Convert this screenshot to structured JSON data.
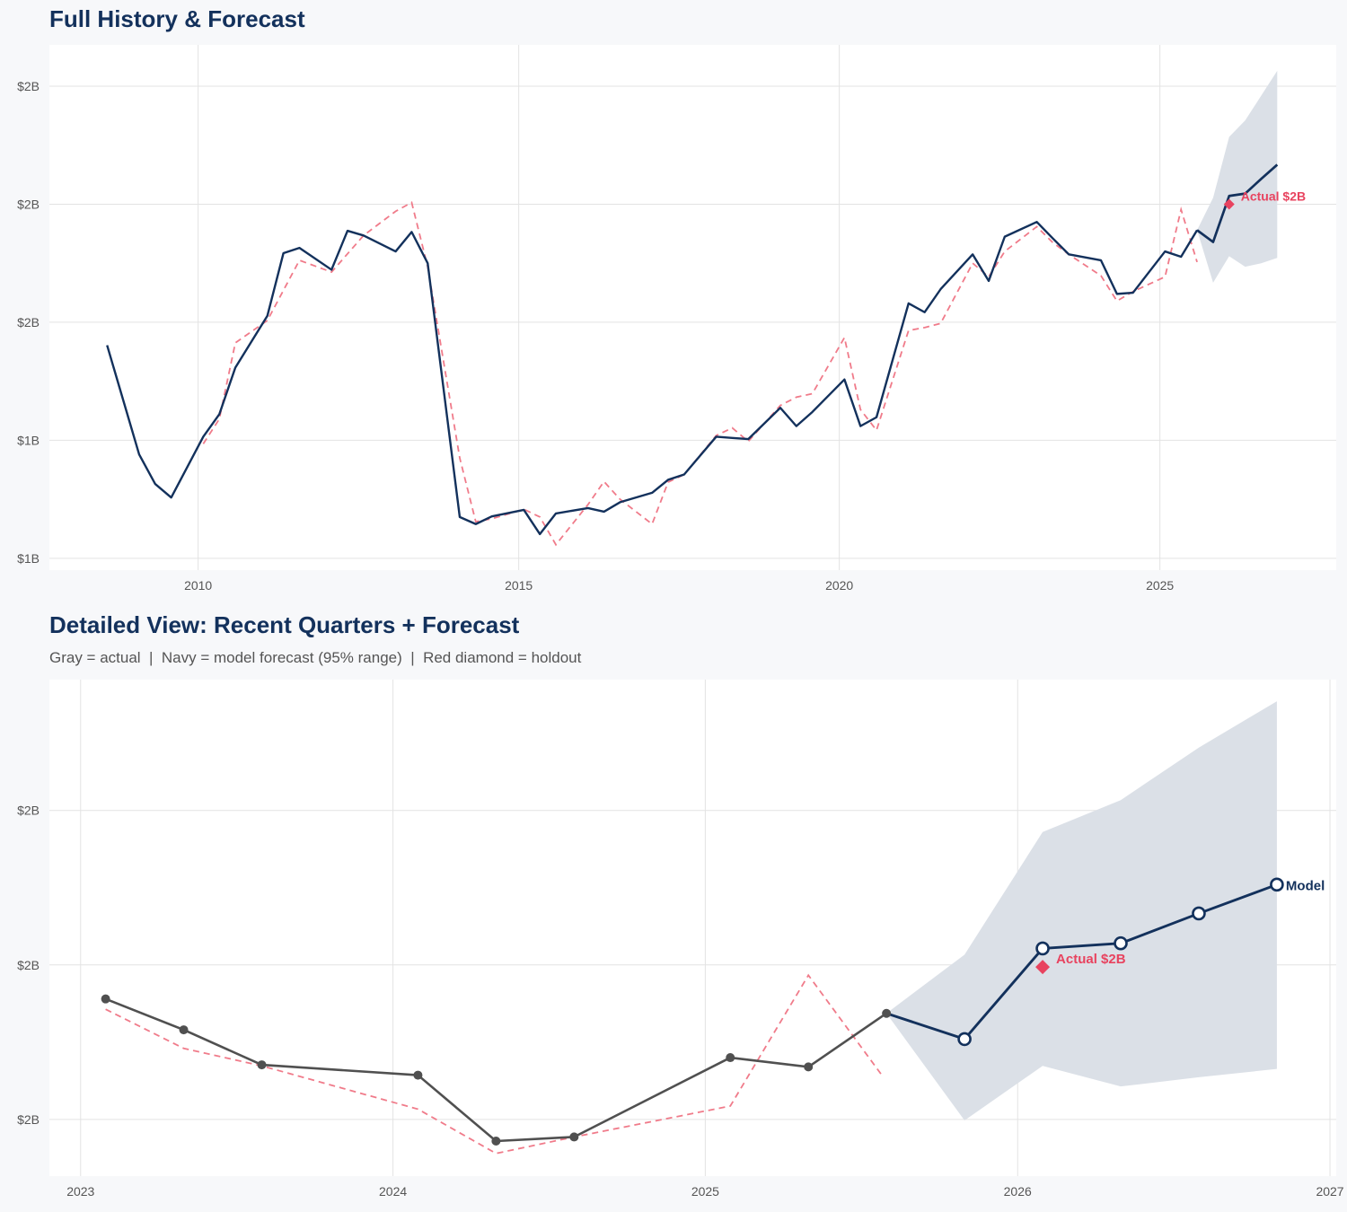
{
  "top": {
    "title": "Full History & Forecast"
  },
  "bottom": {
    "title": "Detailed View: Recent Quarters + Forecast",
    "subtitle": "Gray = actual  |  Navy = model forecast (95% range)  |  Red diamond = holdout"
  },
  "colors": {
    "navy": "#13315c",
    "gray_actual": "#505050",
    "fitted_dashed": "#f07b8a",
    "holdout": "#e8435f",
    "band": "#dbe0e7",
    "grid": "#e3e3e3",
    "panel": "#ffffff",
    "background": "#f7f8fa"
  },
  "chart_data": [
    {
      "type": "line",
      "title": "Full History & Forecast",
      "xlim": [
        2007.68,
        2027.75
      ],
      "ylim": [
        1.18,
        2.07
      ],
      "grid": true,
      "x_ticks": [
        2010,
        2015,
        2020,
        2025
      ],
      "x_tick_labels": [
        "2010",
        "2015",
        "2020",
        "2025"
      ],
      "y_ticks": [
        1.2,
        1.4,
        1.6,
        1.8,
        2.0
      ],
      "y_tick_labels": [
        "$1B",
        "$1B",
        "$2B",
        "$2B",
        "$2B"
      ],
      "history": {
        "x": [
          2008.58,
          2009.08,
          2009.33,
          2009.58,
          2010.08,
          2010.33,
          2010.58,
          2011.08,
          2011.33,
          2011.58,
          2012.08,
          2012.33,
          2012.58,
          2013.08,
          2013.33,
          2013.58,
          2014.08,
          2014.33,
          2014.58,
          2015.08,
          2015.33,
          2015.58,
          2016.08,
          2016.33,
          2016.58,
          2017.08,
          2017.33,
          2017.58,
          2018.08,
          2018.33,
          2018.58,
          2019.08,
          2019.33,
          2019.58,
          2020.08,
          2020.33,
          2020.58,
          2021.08,
          2021.33,
          2021.58,
          2022.08,
          2022.33,
          2022.58,
          2023.08,
          2023.33,
          2023.58,
          2024.08,
          2024.33,
          2024.58,
          2025.08,
          2025.33,
          2025.58
        ],
        "y": [
          1.561,
          1.376,
          1.326,
          1.303,
          1.406,
          1.444,
          1.523,
          1.611,
          1.717,
          1.726,
          1.689,
          1.755,
          1.747,
          1.72,
          1.753,
          1.7,
          1.27,
          1.258,
          1.271,
          1.282,
          1.241,
          1.276,
          1.285,
          1.279,
          1.295,
          1.311,
          1.333,
          1.342,
          1.406,
          1.404,
          1.402,
          1.455,
          1.424,
          1.448,
          1.503,
          1.424,
          1.439,
          1.632,
          1.617,
          1.656,
          1.715,
          1.67,
          1.745,
          1.77,
          1.742,
          1.715,
          1.705,
          1.648,
          1.65,
          1.72,
          1.711,
          1.756
        ]
      },
      "fitted": {
        "x": [
          2010.08,
          2010.33,
          2010.58,
          2011.08,
          2011.58,
          2012.08,
          2012.58,
          2013.08,
          2013.33,
          2013.58,
          2014.08,
          2014.33,
          2014.58,
          2015.08,
          2015.33,
          2015.58,
          2016.08,
          2016.33,
          2016.58,
          2017.08,
          2017.33,
          2017.58,
          2018.08,
          2018.33,
          2018.58,
          2019.08,
          2019.33,
          2019.58,
          2020.08,
          2020.33,
          2020.58,
          2021.08,
          2021.33,
          2021.58,
          2022.08,
          2022.33,
          2022.58,
          2023.08,
          2023.33,
          2023.58,
          2024.08,
          2024.33,
          2024.58,
          2025.08,
          2025.33,
          2025.58
        ],
        "y": [
          1.394,
          1.436,
          1.565,
          1.603,
          1.705,
          1.685,
          1.747,
          1.788,
          1.803,
          1.694,
          1.37,
          1.262,
          1.267,
          1.283,
          1.27,
          1.223,
          1.291,
          1.33,
          1.3,
          1.258,
          1.329,
          1.342,
          1.408,
          1.421,
          1.398,
          1.459,
          1.473,
          1.479,
          1.574,
          1.452,
          1.417,
          1.586,
          1.591,
          1.598,
          1.7,
          1.677,
          1.72,
          1.762,
          1.735,
          1.715,
          1.679,
          1.636,
          1.652,
          1.677,
          1.791,
          1.702
        ]
      },
      "forecast": {
        "x": [
          2025.58,
          2025.83,
          2026.08,
          2026.33,
          2026.58,
          2026.83
        ],
        "y": [
          1.756,
          1.736,
          1.814,
          1.818,
          1.843,
          1.867
        ],
        "upper": [
          1.756,
          1.811,
          1.914,
          1.942,
          1.984,
          2.026
        ],
        "lower": [
          1.756,
          1.667,
          1.712,
          1.694,
          1.7,
          1.709
        ]
      },
      "holdout": {
        "x": 2026.08,
        "y": 1.8,
        "label": "Actual $2B"
      }
    },
    {
      "type": "line",
      "title": "Detailed View: Recent Quarters + Forecast",
      "subtitle": "Gray = actual  |  Navy = model forecast (95% range)  |  Red diamond = holdout",
      "xlim": [
        2022.9,
        2027.02
      ],
      "ylim": [
        1.595,
        2.077
      ],
      "grid": true,
      "x_ticks": [
        2023,
        2024,
        2025,
        2026,
        2027
      ],
      "x_tick_labels": [
        "2023",
        "2024",
        "2025",
        "2026",
        "2027"
      ],
      "y_ticks": [
        1.65,
        1.8,
        1.95
      ],
      "y_tick_labels": [
        "$2B",
        "$2B",
        "$2B"
      ],
      "history": {
        "x": [
          2023.08,
          2023.33,
          2023.58,
          2024.08,
          2024.33,
          2024.58,
          2025.08,
          2025.33,
          2025.58
        ],
        "y": [
          1.767,
          1.737,
          1.703,
          1.693,
          1.629,
          1.633,
          1.71,
          1.701,
          1.753
        ]
      },
      "fitted": {
        "x": [
          2023.08,
          2023.33,
          2023.58,
          2024.08,
          2024.33,
          2024.58,
          2025.08,
          2025.33,
          2025.57
        ],
        "y": [
          1.757,
          1.719,
          1.702,
          1.66,
          1.617,
          1.633,
          1.663,
          1.79,
          1.691
        ]
      },
      "forecast": {
        "x": [
          2025.58,
          2025.83,
          2026.08,
          2026.33,
          2026.58,
          2026.83
        ],
        "y": [
          1.753,
          1.728,
          1.816,
          1.821,
          1.85,
          1.878
        ],
        "upper": [
          1.753,
          1.81,
          1.929,
          1.96,
          2.011,
          2.056
        ],
        "lower": [
          1.753,
          1.649,
          1.702,
          1.682,
          1.691,
          1.699
        ],
        "end_label": "Model"
      },
      "holdout": {
        "x": 2026.08,
        "y": 1.798,
        "label": "Actual $2B"
      }
    }
  ]
}
